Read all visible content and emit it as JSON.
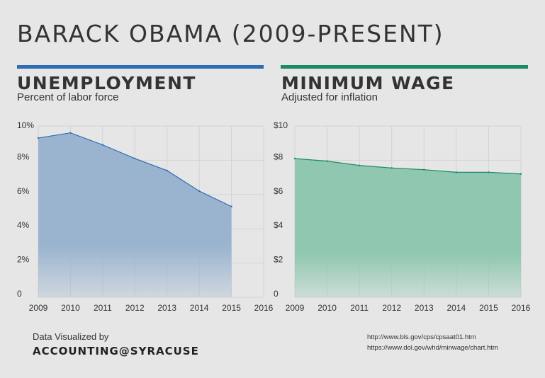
{
  "page": {
    "title": "BARACK OBAMA (2009-PRESENT)",
    "colors": {
      "background": "#e6e6e6",
      "unemployment_accent": "#2e6db4",
      "wage_accent": "#1a8a64"
    }
  },
  "footer": {
    "label": "Data Visualized by",
    "brand": "ACCOUNTING@SYRACUSE",
    "sources": [
      "http://www.bls.gov/cps/cpsaat01.htm",
      "https://www.dol.gov/whd/minwage/chart.htm"
    ]
  },
  "chart_data": [
    {
      "type": "area",
      "title": "UNEMPLOYMENT",
      "subtitle": "Percent of labor force",
      "x": [
        2009,
        2010,
        2011,
        2012,
        2013,
        2014,
        2015
      ],
      "x_ticks": [
        "2009",
        "2010",
        "2011",
        "2012",
        "2013",
        "2014",
        "2015",
        "2016"
      ],
      "xlim": [
        2009,
        2016
      ],
      "values": [
        9.3,
        9.6,
        8.9,
        8.1,
        7.4,
        6.2,
        5.3
      ],
      "y_ticks": [
        {
          "value": 0,
          "label": "0"
        },
        {
          "value": 2,
          "label": "2%"
        },
        {
          "value": 4,
          "label": "4%"
        },
        {
          "value": 6,
          "label": "6%"
        },
        {
          "value": 8,
          "label": "8%"
        },
        {
          "value": 10,
          "label": "10%"
        }
      ],
      "ylim": [
        0,
        10
      ],
      "grid": true,
      "color": "#2e6db4",
      "fill": "#9ab3cf"
    },
    {
      "type": "area",
      "title": "MINIMUM WAGE",
      "subtitle": "Adjusted for inflation",
      "x": [
        2009,
        2010,
        2011,
        2012,
        2013,
        2014,
        2015,
        2016
      ],
      "x_ticks": [
        "2009",
        "2010",
        "2011",
        "2012",
        "2013",
        "2014",
        "2015",
        "2016"
      ],
      "xlim": [
        2009,
        2016
      ],
      "values": [
        8.1,
        7.95,
        7.7,
        7.55,
        7.45,
        7.3,
        7.3,
        7.2
      ],
      "y_ticks": [
        {
          "value": 0,
          "label": "0"
        },
        {
          "value": 2,
          "label": "$2"
        },
        {
          "value": 4,
          "label": "$4"
        },
        {
          "value": 6,
          "label": "$6"
        },
        {
          "value": 8,
          "label": "$8"
        },
        {
          "value": 10,
          "label": "$10"
        }
      ],
      "ylim": [
        0,
        10
      ],
      "grid": true,
      "color": "#1a8a64",
      "fill": "#8fc7b0"
    }
  ]
}
